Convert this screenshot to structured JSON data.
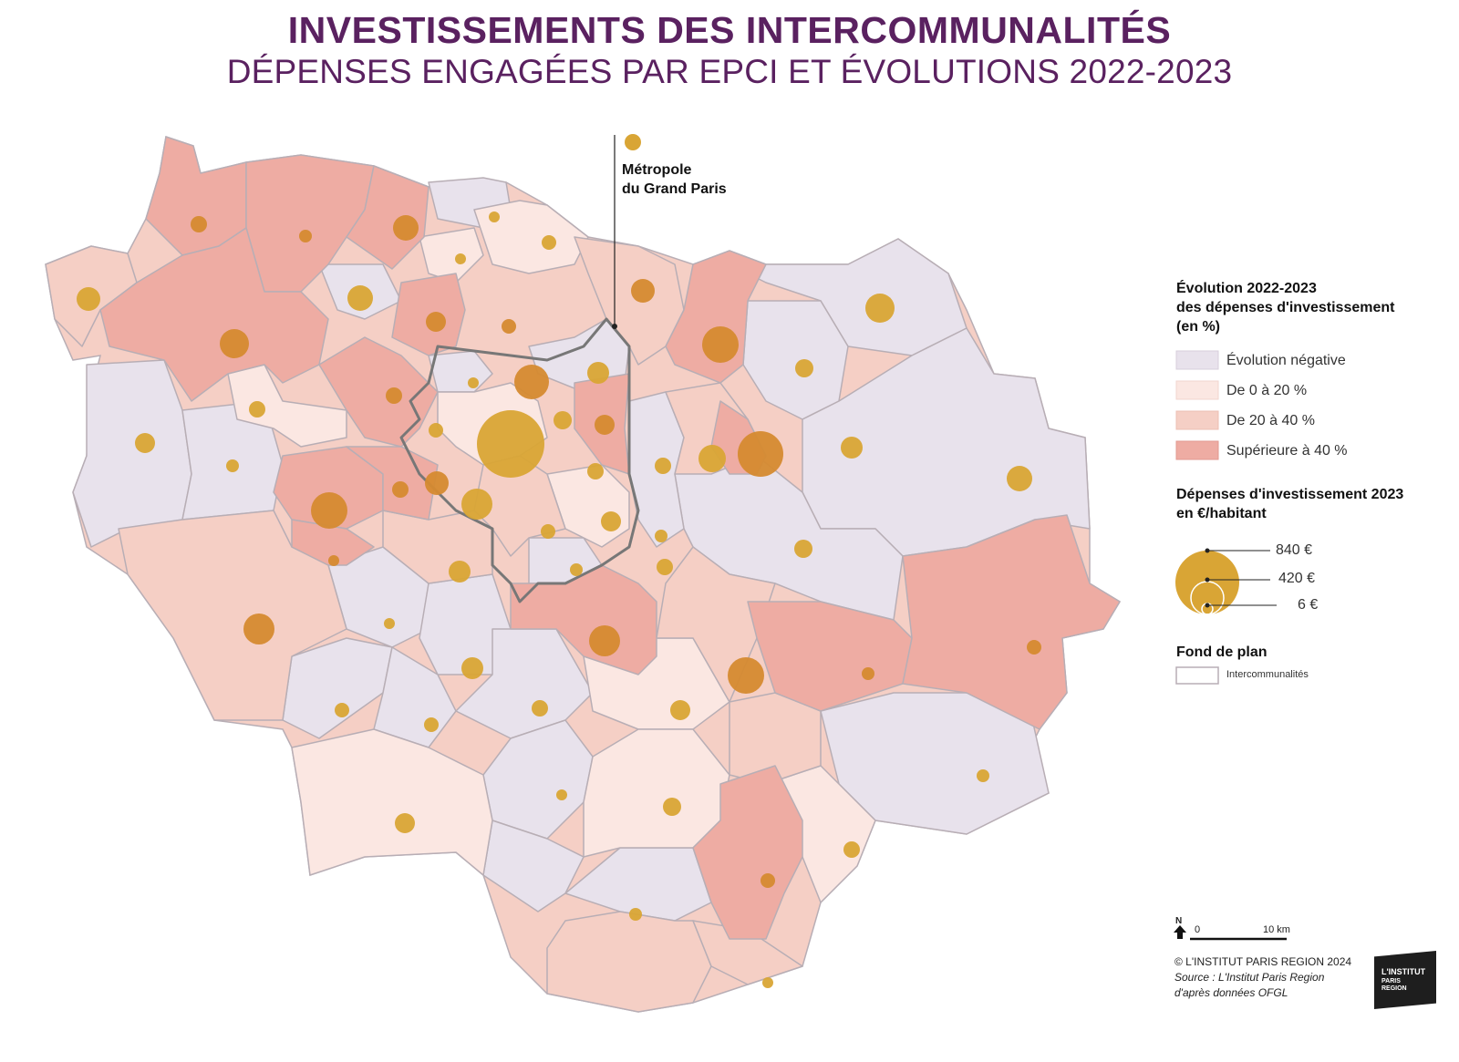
{
  "title": {
    "main": "INVESTISSEMENTS DES INTERCOMMUNALITÉS",
    "sub": "DÉPENSES ENGAGÉES PAR EPCI ET ÉVOLUTIONS 2022-2023"
  },
  "metropole_label": {
    "line1": "Métropole",
    "line2": "du Grand Paris"
  },
  "legend": {
    "evolution_title": [
      "Évolution 2022-2023",
      "des dépenses d'investissement",
      "(en %)"
    ],
    "categories": [
      {
        "label": "Évolution négative",
        "color": "#e8e2ec"
      },
      {
        "label": "De 0 à 20 %",
        "color": "#fbe7e2"
      },
      {
        "label": "De 20 à 40 %",
        "color": "#f5cfc5"
      },
      {
        "label": "Supérieure à 40 %",
        "color": "#eeaca3"
      }
    ],
    "spending_title": [
      "Dépenses d'investissement 2023",
      "en €/habitant"
    ],
    "circle_values": [
      {
        "label": "840 €",
        "value": 840
      },
      {
        "label": "420 €",
        "value": 420
      },
      {
        "label": "6 €",
        "value": 6
      }
    ],
    "fond_title": "Fond de plan",
    "fond_item": "Intercommunalités"
  },
  "scale": {
    "north": "N",
    "zero": "0",
    "distance": "10 km"
  },
  "source": {
    "copyright": "© L'INSTITUT PARIS REGION 2024",
    "line1": "Source : L'Institut Paris Region",
    "line2": "d'après données OFGL"
  },
  "logo": {
    "line1": "L'INSTITUT",
    "line2": "PARIS",
    "line3": "REGION"
  },
  "colors": {
    "title": "#5a2160",
    "circle": "#d9a535",
    "circle_dark": "#d58a30",
    "boundary": "#b8aeb5",
    "metropole_outline": "#777777"
  }
}
